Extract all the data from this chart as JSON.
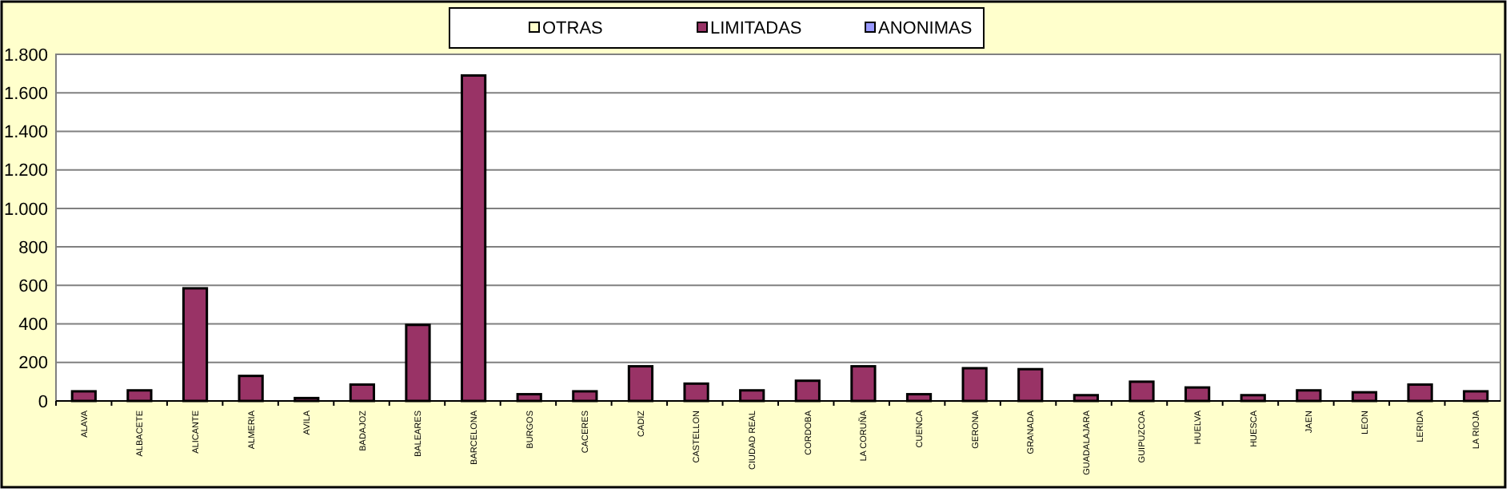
{
  "chart_data": {
    "type": "bar",
    "stacked": true,
    "categories": [
      "ALAVA",
      "ALBACETE",
      "ALICANTE",
      "ALMERIA",
      "AVILA",
      "BADAJOZ",
      "BALEARES",
      "BARCELONA",
      "BURGOS",
      "CACERES",
      "CADIZ",
      "CASTELLON",
      "CIUDAD REAL",
      "CORDOBA",
      "LA CORUÑA",
      "CUENCA",
      "GERONA",
      "GRANADA",
      "GUADALAJARA",
      "GUIPUZCOA",
      "HUELVA",
      "HUESCA",
      "JAEN",
      "LEON",
      "LERIDA",
      "LA RIOJA"
    ],
    "series": [
      {
        "name": "ANONIMAS",
        "color": "#9999ff",
        "values": [
          0,
          0,
          0,
          0,
          0,
          0,
          0,
          0,
          0,
          0,
          0,
          0,
          0,
          0,
          0,
          0,
          0,
          0,
          0,
          0,
          0,
          0,
          0,
          0,
          0,
          0
        ]
      },
      {
        "name": "LIMITADAS",
        "color": "#993366",
        "values": [
          50,
          55,
          585,
          130,
          15,
          85,
          395,
          1690,
          35,
          50,
          180,
          90,
          55,
          105,
          180,
          35,
          170,
          165,
          30,
          100,
          70,
          30,
          55,
          45,
          85,
          50
        ]
      },
      {
        "name": "OTRAS",
        "color": "#ffffcc",
        "values": [
          0,
          0,
          0,
          0,
          0,
          0,
          0,
          0,
          0,
          0,
          0,
          0,
          0,
          0,
          0,
          0,
          0,
          0,
          0,
          0,
          0,
          0,
          0,
          0,
          0,
          0
        ]
      }
    ],
    "ylim": [
      0,
      1800
    ],
    "yticks": [
      0,
      {
        "value": 200,
        "label": "200"
      },
      {
        "value": 400,
        "label": "400"
      },
      {
        "value": 600,
        "label": "600"
      },
      {
        "value": 800,
        "label": "800"
      },
      {
        "value": 1000,
        "label": "1.000"
      },
      {
        "value": 1200,
        "label": "1.200"
      },
      {
        "value": 1400,
        "label": "1.400"
      },
      {
        "value": 1600,
        "label": "1.600"
      },
      {
        "value": 1800,
        "label": "1.800"
      }
    ],
    "grid": "y",
    "legend": "top"
  }
}
